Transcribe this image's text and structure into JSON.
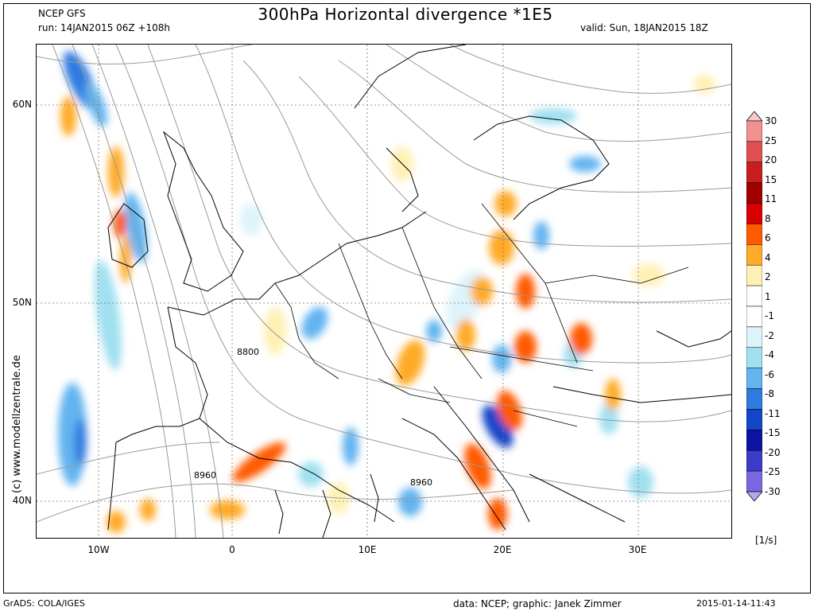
{
  "header": {
    "model": "NCEP GFS",
    "run": "run: 14JAN2015 06Z +108h",
    "title": "300hPa Horizontal divergence *1E5",
    "valid": "valid: Sun, 18JAN2015 18Z"
  },
  "map": {
    "lat_labels": [
      "60N",
      "50N",
      "40N"
    ],
    "lon_labels": [
      "10W",
      "0",
      "10E",
      "20E",
      "30E"
    ],
    "contour_labels": [
      "8800",
      "8960",
      "8960"
    ],
    "watermark": "(c) www.modellzentrale.de"
  },
  "colorbar": {
    "unit": "[1/s]",
    "levels": [
      "30",
      "25",
      "20",
      "15",
      "11",
      "8",
      "6",
      "4",
      "2",
      "1",
      "-1",
      "-2",
      "-4",
      "-6",
      "-8",
      "-11",
      "-15",
      "-20",
      "-25",
      "-30"
    ],
    "colors": [
      "#f7c8c8",
      "#f09090",
      "#e05050",
      "#c81e1e",
      "#a00000",
      "#d80000",
      "#ff5a00",
      "#ffaa28",
      "#fff0b4",
      "#ffffff",
      "#ffffff",
      "#ddf4fa",
      "#a0e0f0",
      "#64b4f0",
      "#2f7ce0",
      "#1446c8",
      "#0a14a0",
      "#3c3cc8",
      "#7a68e0",
      "#b4a8f0"
    ]
  },
  "footer": {
    "left": "GrADS: COLA/IGES",
    "center": "data: NCEP; graphic: Janek Zimmer",
    "right": "2015-01-14-11:43"
  }
}
